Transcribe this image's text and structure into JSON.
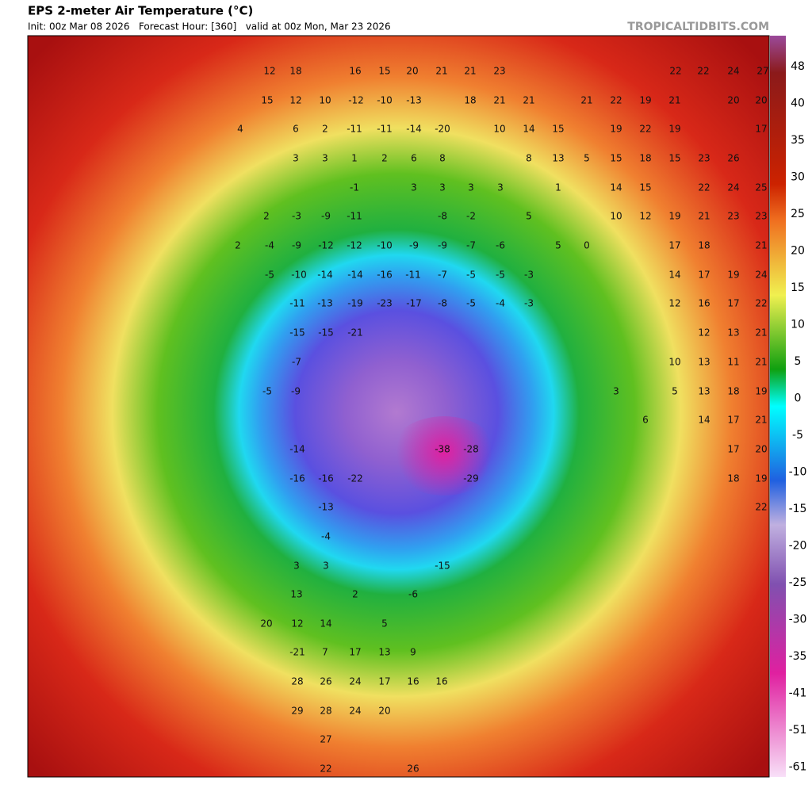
{
  "header": {
    "title": "EPS 2-meter Air Temperature (°C)",
    "subtitle": "Init: 00z Mar 08 2026   Forecast Hour: [360]   valid at 00z Mon, Mar 23 2026",
    "brand": "TROPICALTIDBITS.COM"
  },
  "colorbar": {
    "ticks": [
      48,
      40,
      35,
      30,
      25,
      20,
      15,
      10,
      5,
      0,
      -5,
      -10,
      -15,
      -20,
      -25,
      -30,
      -35,
      -41,
      -51,
      -61
    ]
  },
  "map_labels": [
    12,
    18,
    16,
    15,
    20,
    21,
    21,
    23,
    22,
    22,
    24,
    27,
    15,
    12,
    10,
    -12,
    -10,
    -13,
    18,
    21,
    21,
    21,
    22,
    19,
    21,
    20,
    20,
    4,
    6,
    2,
    -11,
    -11,
    -14,
    -20,
    10,
    14,
    15,
    19,
    22,
    19,
    17,
    3,
    3,
    1,
    2,
    6,
    8,
    8,
    13,
    5,
    15,
    18,
    15,
    23,
    26,
    -1,
    3,
    3,
    3,
    3,
    1,
    14,
    15,
    22,
    24,
    25,
    2,
    -3,
    -9,
    -11,
    -8,
    -2,
    5,
    10,
    12,
    19,
    21,
    23,
    23,
    2,
    -4,
    -9,
    -12,
    -12,
    -10,
    -9,
    -9,
    -7,
    -6,
    5,
    0,
    17,
    18,
    21,
    -5,
    -10,
    -14,
    -14,
    -16,
    -11,
    -7,
    -5,
    -5,
    -3,
    14,
    17,
    19,
    24,
    -11,
    -13,
    -19,
    -23,
    -17,
    -8,
    -5,
    -4,
    -3,
    12,
    16,
    17,
    22,
    -15,
    -15,
    -21,
    12,
    13,
    21,
    -7,
    10,
    13,
    11,
    21,
    -5,
    -9,
    3,
    5,
    13,
    18,
    19,
    6,
    14,
    17,
    21,
    -14,
    -38,
    -28,
    17,
    20,
    -16,
    -16,
    -22,
    -29,
    18,
    19,
    -13,
    22,
    -4,
    3,
    3,
    -15,
    13,
    2,
    -6,
    20,
    12,
    14,
    5,
    -21,
    7,
    17,
    13,
    9,
    28,
    26,
    24,
    17,
    16,
    16,
    29,
    28,
    24,
    20,
    27,
    22,
    26
  ]
}
